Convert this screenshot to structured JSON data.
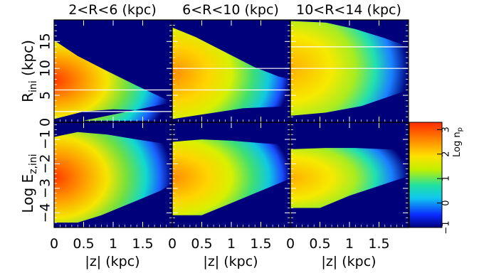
{
  "chart_data": {
    "type": "heatmap",
    "columns": [
      {
        "title": "2<R<6  (kpc)",
        "r_min": 2,
        "r_max": 6
      },
      {
        "title": "6<R<10  (kpc)",
        "r_min": 6,
        "r_max": 10
      },
      {
        "title": "10<R<14  (kpc)",
        "r_min": 10,
        "r_max": 14
      }
    ],
    "xlabel": "|z|  (kpc)",
    "xlim": [
      0,
      2.0
    ],
    "xticks": [
      0,
      0.5,
      1,
      1.5
    ],
    "xtick_labels": [
      "0",
      "0.5",
      "1",
      "1.5"
    ],
    "rows": [
      {
        "ylabel": "R",
        "ylabel_sub": "ini",
        "ylabel_unit": "  (kpc)",
        "ylim": [
          0,
          19
        ],
        "yticks": [
          0,
          5,
          10,
          15
        ],
        "ytick_labels": [
          "0",
          "5",
          "10",
          "15"
        ]
      },
      {
        "ylabel": "Log  E",
        "ylabel_sub": "z,ini",
        "ylim": [
          -4.6,
          -0.3
        ],
        "yticks": [
          -4,
          -3,
          -2,
          -1
        ],
        "ytick_labels": [
          "−4",
          "−3",
          "−2",
          "−1"
        ]
      }
    ],
    "colorbar": {
      "label": "Log n",
      "label_sub": "p",
      "range": [
        -1,
        3.3
      ],
      "ticks": [
        -1,
        0,
        1,
        2,
        3
      ],
      "tick_labels": [
        "−1",
        "0",
        "1",
        "2",
        "3"
      ],
      "colormap": "rainbow: dark blue → cyan → green → yellow → orange → red"
    },
    "background_color": "#00007a"
  }
}
